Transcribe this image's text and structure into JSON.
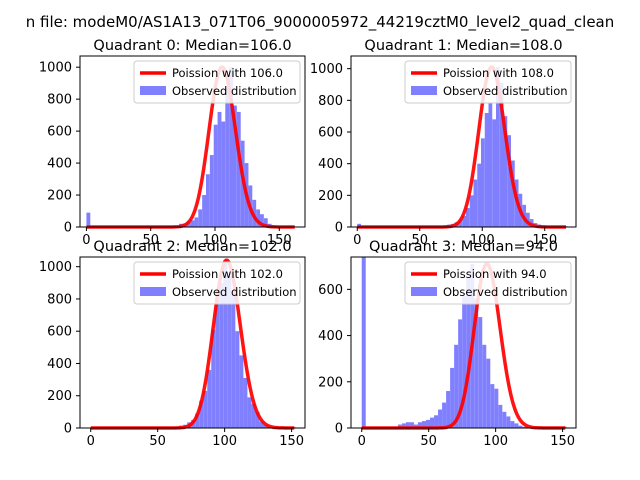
{
  "suptitle": "n file: modeM0/AS1A13_071T06_9000005972_44219cztM0_level2_quad_clean",
  "legend_model_color": "#ff0000",
  "legend_obs_color": "#8080ff",
  "chart_data": [
    {
      "type": "bar",
      "title": "Quadrant 0: Median=106.0",
      "xlim": [
        -5,
        170
      ],
      "ylim": [
        0,
        1070
      ],
      "xticks": [
        0,
        50,
        100,
        150
      ],
      "yticks": [
        0,
        200,
        400,
        600,
        800,
        1000
      ],
      "legend": [
        "Poission with 106.0",
        "Observed distribution"
      ],
      "legend_position": "upper right",
      "poisson_mean": 106.0,
      "bin_width": 3,
      "hist_edges_start": 0,
      "hist_counts": [
        90,
        5,
        5,
        5,
        5,
        5,
        5,
        5,
        5,
        5,
        5,
        5,
        5,
        5,
        5,
        5,
        5,
        5,
        5,
        5,
        5,
        5,
        5,
        5,
        20,
        22,
        32,
        42,
        60,
        110,
        200,
        330,
        450,
        640,
        720,
        660,
        870,
        1000,
        760,
        720,
        540,
        400,
        260,
        170,
        110,
        80,
        55,
        20,
        10,
        5,
        5,
        5,
        5,
        5
      ]
    },
    {
      "type": "bar",
      "title": "Quadrant 1: Median=108.0",
      "xlim": [
        -5,
        175
      ],
      "ylim": [
        0,
        1080
      ],
      "xticks": [
        0,
        50,
        100,
        150
      ],
      "yticks": [
        0,
        200,
        400,
        600,
        800,
        1000
      ],
      "legend": [
        "Poission with 108.0",
        "Observed distribution"
      ],
      "legend_position": "upper right",
      "poisson_mean": 108.0,
      "bin_width": 3,
      "hist_edges_start": 0,
      "hist_counts": [
        20,
        5,
        5,
        5,
        5,
        5,
        5,
        5,
        5,
        5,
        5,
        5,
        5,
        5,
        5,
        5,
        5,
        5,
        5,
        5,
        5,
        5,
        5,
        10,
        15,
        20,
        30,
        45,
        70,
        120,
        200,
        300,
        400,
        560,
        720,
        780,
        680,
        1010,
        910,
        700,
        580,
        420,
        300,
        210,
        140,
        90,
        50,
        25,
        15,
        10,
        5,
        5,
        5,
        5,
        5,
        5
      ]
    },
    {
      "type": "bar",
      "title": "Quadrant 2: Median=102.0",
      "xlim": [
        -8,
        160
      ],
      "ylim": [
        0,
        1060
      ],
      "xticks": [
        0,
        50,
        100,
        150
      ],
      "yticks": [
        0,
        200,
        400,
        600,
        800,
        1000
      ],
      "legend": [
        "Poission with 102.0",
        "Observed distribution"
      ],
      "legend_position": "upper right",
      "poisson_mean": 102.0,
      "bin_width": 3,
      "hist_edges_start": 0,
      "hist_counts": [
        5,
        5,
        5,
        5,
        5,
        5,
        5,
        5,
        5,
        5,
        5,
        5,
        5,
        5,
        5,
        5,
        5,
        5,
        5,
        5,
        5,
        10,
        15,
        20,
        35,
        50,
        90,
        170,
        230,
        360,
        610,
        800,
        900,
        1040,
        940,
        840,
        600,
        450,
        310,
        190,
        150,
        100,
        40,
        20,
        5,
        5,
        5,
        5,
        5,
        5,
        5
      ]
    },
    {
      "type": "bar",
      "title": "Quadrant 3: Median=94.0",
      "xlim": [
        -8,
        160
      ],
      "ylim": [
        0,
        740
      ],
      "xticks": [
        0,
        50,
        100,
        150
      ],
      "yticks": [
        0,
        200,
        400,
        600
      ],
      "legend": [
        "Poission with 94.0",
        "Observed distribution"
      ],
      "legend_position": "upper right",
      "poisson_mean": 94.0,
      "bin_width": 3,
      "hist_edges_start": 0,
      "hist_counts": [
        740,
        0,
        0,
        0,
        0,
        0,
        0,
        0,
        0,
        15,
        20,
        25,
        25,
        15,
        25,
        30,
        35,
        45,
        55,
        80,
        110,
        160,
        260,
        360,
        470,
        570,
        650,
        710,
        560,
        480,
        360,
        300,
        190,
        170,
        100,
        70,
        50,
        30,
        20,
        10,
        5,
        5,
        5,
        5,
        5,
        5,
        5,
        5,
        5,
        5,
        5
      ]
    }
  ]
}
